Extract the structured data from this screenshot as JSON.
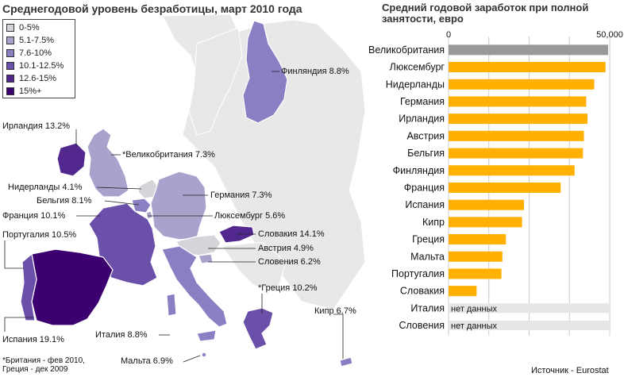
{
  "map": {
    "title": "Среднегодовой уровень безработицы, март 2010 года",
    "legend": [
      {
        "label": "0-5%",
        "color": "#d4d4d9"
      },
      {
        "label": "5.1-7.5%",
        "color": "#a7a3cc"
      },
      {
        "label": "7.6-10%",
        "color": "#8b7fc4"
      },
      {
        "label": "10.1-12.5%",
        "color": "#6b50a9"
      },
      {
        "label": "12.6-15%",
        "color": "#52288f"
      },
      {
        "label": "15%+",
        "color": "#3d0070"
      }
    ],
    "labels": {
      "finland": "Финляндия 8.8%",
      "ireland": "Ирландия 13.2%",
      "uk": "*Великобритания 7.3%",
      "netherlands": "Нидерланды 4.1%",
      "belgium": "Бельгия 8.1%",
      "germany": "Германия 7.3%",
      "france": "Франция 10.1%",
      "luxembourg": "Люксембург 5.6%",
      "portugal": "Португалия 10.5%",
      "slovakia": "Словакия 14.1%",
      "austria": "Австрия 4.9%",
      "slovenia": "Словения 6.2%",
      "greece": "*Греция 10.2%",
      "cyprus": "Кипр 6.7%",
      "italy": "Италия 8.8%",
      "malta": "Мальта 6.9%",
      "spain": "Испания 19.1%"
    },
    "footnote": [
      "*Британия - фев 2010,",
      "Греция - дек 2009"
    ]
  },
  "chart_data": {
    "type": "bar",
    "orientation": "horizontal",
    "title": "Средний годовой заработок при полной занятости, евро",
    "xlim": [
      0,
      50000
    ],
    "x_ticks": [
      "0",
      "50,000"
    ],
    "grid": true,
    "categories": [
      "Великобритания",
      "Люксембург",
      "Нидерланды",
      "Германия",
      "Ирландия",
      "Австрия",
      "Бельгия",
      "Финляндия",
      "Франция",
      "Испания",
      "Кипр",
      "Греция",
      "Мальта",
      "Португалия",
      "Словакия",
      "Италия",
      "Словения"
    ],
    "values": [
      49500,
      48700,
      45200,
      42700,
      43100,
      42000,
      41700,
      39100,
      34800,
      23400,
      22800,
      17800,
      16700,
      16400,
      8700,
      null,
      null
    ],
    "highlight_color": "#999999",
    "bar_color": "#ffb000",
    "missing_label": "нет данных"
  },
  "source": "Источник - Eurostat"
}
